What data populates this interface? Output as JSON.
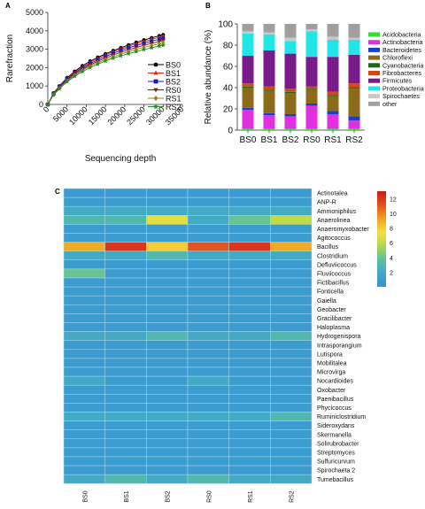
{
  "panels": {
    "a": "A",
    "b": "B",
    "c": "C"
  },
  "colors": {
    "rarefaction": [
      "#000000",
      "#e8202a",
      "#1a1ac8",
      "#8b1a1a",
      "#8b8b1a",
      "#228b22"
    ],
    "taxa": [
      "#33dd33",
      "#e030e0",
      "#1a3fd0",
      "#8b6a1a",
      "#1a6a1a",
      "#c84a1a",
      "#7a1a8b",
      "#22e6e6",
      "#c8c8c8",
      "#a0a0a0"
    ],
    "heatmap_scale": [
      "#3a8fd8",
      "#40a8c8",
      "#5cc0a0",
      "#b0d850",
      "#f4e040",
      "#f0a020",
      "#e05020",
      "#d01818"
    ]
  },
  "chart_data": [
    {
      "type": "line",
      "panel": "A",
      "xlabel": "Sequencing depth",
      "ylabel": "Rarefraction",
      "xlim": [
        0,
        35000
      ],
      "ylim": [
        0,
        5000
      ],
      "xticks": [
        "0",
        "5000",
        "10000",
        "15000",
        "20000",
        "25000",
        "30000",
        "35000"
      ],
      "yticks": [
        "0",
        "1000",
        "2000",
        "3000",
        "4000",
        "5000"
      ],
      "legend_position": "right",
      "x": [
        0,
        1500,
        3000,
        5000,
        7000,
        9000,
        11000,
        13000,
        15000,
        17000,
        19000,
        21000,
        23000,
        25000,
        27000,
        29000,
        30000
      ],
      "series": [
        {
          "name": "BS0",
          "marker": "circle",
          "values": [
            0,
            620,
            1000,
            1450,
            1800,
            2100,
            2350,
            2560,
            2750,
            2920,
            3080,
            3230,
            3370,
            3500,
            3620,
            3730,
            3780
          ]
        },
        {
          "name": "BS1",
          "marker": "triangle-up",
          "values": [
            0,
            600,
            970,
            1410,
            1750,
            2040,
            2290,
            2500,
            2690,
            2860,
            3010,
            3160,
            3290,
            3420,
            3540,
            3650,
            3700
          ]
        },
        {
          "name": "BS2",
          "marker": "square",
          "values": [
            0,
            580,
            940,
            1370,
            1700,
            1980,
            2220,
            2430,
            2610,
            2780,
            2930,
            3070,
            3200,
            3320,
            3440,
            3540,
            3590
          ]
        },
        {
          "name": "RS0",
          "marker": "triangle-down",
          "values": [
            0,
            560,
            910,
            1320,
            1640,
            1910,
            2150,
            2350,
            2530,
            2690,
            2830,
            2970,
            3090,
            3210,
            3320,
            3420,
            3470
          ]
        },
        {
          "name": "RS1",
          "marker": "diamond",
          "values": [
            0,
            540,
            880,
            1280,
            1590,
            1850,
            2080,
            2270,
            2440,
            2600,
            2740,
            2870,
            2990,
            3100,
            3200,
            3300,
            3350
          ]
        },
        {
          "name": "RS2",
          "marker": "star",
          "values": [
            0,
            520,
            850,
            1230,
            1530,
            1780,
            2000,
            2190,
            2360,
            2510,
            2640,
            2760,
            2870,
            2980,
            3080,
            3170,
            3220
          ]
        }
      ]
    },
    {
      "type": "bar",
      "stacked": true,
      "panel": "B",
      "ylabel": "Relative abundance (%)",
      "ylim": [
        0,
        100
      ],
      "yticks": [
        "0",
        "20",
        "40",
        "60",
        "80",
        "100"
      ],
      "categories": [
        "BS0",
        "BS1",
        "BS2",
        "RS0",
        "RS1",
        "RS2"
      ],
      "legend_position": "right",
      "series": [
        {
          "name": "Acidobacteria",
          "values": [
            1,
            1,
            1,
            1,
            1,
            1
          ]
        },
        {
          "name": "Actinobacteria",
          "values": [
            18,
            13,
            12,
            22,
            14,
            8
          ]
        },
        {
          "name": "Bacteroidetes",
          "values": [
            2,
            2,
            2,
            2,
            3,
            4
          ]
        },
        {
          "name": "Chloroflexi",
          "values": [
            19,
            21,
            20,
            13,
            14,
            26
          ]
        },
        {
          "name": "Cyanobacteria",
          "values": [
            1,
            1,
            1,
            1,
            1,
            1
          ]
        },
        {
          "name": "Fibrobacteres",
          "values": [
            3,
            3,
            3,
            2,
            3,
            4
          ]
        },
        {
          "name": "Firmicutes",
          "values": [
            26,
            34,
            33,
            28,
            33,
            27
          ]
        },
        {
          "name": "Proteobacteria",
          "values": [
            21,
            15,
            12,
            24,
            16,
            14
          ]
        },
        {
          "name": "Spirochaetes",
          "values": [
            2,
            2,
            3,
            2,
            3,
            2
          ]
        },
        {
          "name": "other",
          "values": [
            7,
            8,
            13,
            5,
            12,
            13
          ]
        }
      ]
    },
    {
      "type": "heatmap",
      "panel": "C",
      "columns": [
        "BS0",
        "BS1",
        "BS2",
        "RS0",
        "RS1",
        "RS2"
      ],
      "colorbar_ticks": [
        "12",
        "10",
        "8",
        "6",
        "4",
        "2"
      ],
      "value_range": [
        0,
        13
      ],
      "rows": [
        {
          "name": "Actinotalea",
          "values": [
            1,
            1,
            1,
            1,
            1,
            1
          ]
        },
        {
          "name": "ANP-R",
          "values": [
            1,
            1,
            1,
            1,
            1,
            1
          ]
        },
        {
          "name": "Ammoniphilus",
          "values": [
            2,
            2,
            2,
            2,
            2,
            2
          ]
        },
        {
          "name": "Anaerolinea",
          "values": [
            3,
            3,
            7,
            2,
            4,
            6
          ]
        },
        {
          "name": "Anaeromyxobacter",
          "values": [
            1,
            1,
            1,
            1,
            1,
            1
          ]
        },
        {
          "name": "Agitococcus",
          "values": [
            1,
            1,
            1,
            1,
            1,
            1
          ]
        },
        {
          "name": "Bacillus",
          "values": [
            9,
            12,
            8,
            11,
            12,
            9
          ]
        },
        {
          "name": "Clostridium",
          "values": [
            2,
            2,
            3,
            2,
            2,
            2
          ]
        },
        {
          "name": "Defluviicoccus",
          "values": [
            1,
            1,
            1,
            1,
            1,
            1
          ]
        },
        {
          "name": "Fluviicoccus",
          "values": [
            4,
            1,
            1,
            1,
            1,
            1
          ]
        },
        {
          "name": "Fictibacillus",
          "values": [
            1,
            1,
            1,
            1,
            1,
            1
          ]
        },
        {
          "name": "Fonticella",
          "values": [
            1,
            1,
            1,
            1,
            1,
            1
          ]
        },
        {
          "name": "Gaiella",
          "values": [
            1,
            1,
            1,
            1,
            1,
            1
          ]
        },
        {
          "name": "Geobacter",
          "values": [
            1,
            1,
            1,
            1,
            1,
            1
          ]
        },
        {
          "name": "Gracilibacter",
          "values": [
            1,
            1,
            1,
            1,
            1,
            1
          ]
        },
        {
          "name": "Haloplasma",
          "values": [
            1,
            1,
            1,
            1,
            1,
            1
          ]
        },
        {
          "name": "Hydrogenispora",
          "values": [
            2,
            2,
            3,
            2,
            2,
            3
          ]
        },
        {
          "name": "Intrasporangium",
          "values": [
            1,
            1,
            1,
            1,
            1,
            1
          ]
        },
        {
          "name": "Lutispora",
          "values": [
            1,
            1,
            1,
            1,
            1,
            1
          ]
        },
        {
          "name": "Mobilitalea",
          "values": [
            1,
            1,
            1,
            1,
            1,
            1
          ]
        },
        {
          "name": "Microvirga",
          "values": [
            1,
            1,
            1,
            1,
            1,
            1
          ]
        },
        {
          "name": "Nocardioides",
          "values": [
            2,
            1,
            1,
            2,
            1,
            1
          ]
        },
        {
          "name": "Oxobacter",
          "values": [
            1,
            1,
            1,
            1,
            1,
            1
          ]
        },
        {
          "name": "Paenibacillus",
          "values": [
            1,
            1,
            1,
            1,
            1,
            1
          ]
        },
        {
          "name": "Phycicoccus",
          "values": [
            1,
            1,
            1,
            1,
            1,
            1
          ]
        },
        {
          "name": "Ruminiclostridium",
          "values": [
            2,
            2,
            2,
            2,
            2,
            3
          ]
        },
        {
          "name": "Sideroxydans",
          "values": [
            1,
            1,
            1,
            1,
            1,
            1
          ]
        },
        {
          "name": "Skermanella",
          "values": [
            1,
            1,
            1,
            1,
            1,
            1
          ]
        },
        {
          "name": "Solirubrobacter",
          "values": [
            1,
            1,
            1,
            1,
            1,
            1
          ]
        },
        {
          "name": "Streptomyces",
          "values": [
            1,
            1,
            1,
            1,
            1,
            1
          ]
        },
        {
          "name": "Sulfuricurvum",
          "values": [
            1,
            1,
            1,
            1,
            1,
            1
          ]
        },
        {
          "name": "Spirochaeta 2",
          "values": [
            1,
            1,
            1,
            1,
            1,
            1
          ]
        },
        {
          "name": "Tumebacillus",
          "values": [
            2,
            3,
            2,
            3,
            2,
            2
          ]
        }
      ]
    }
  ]
}
